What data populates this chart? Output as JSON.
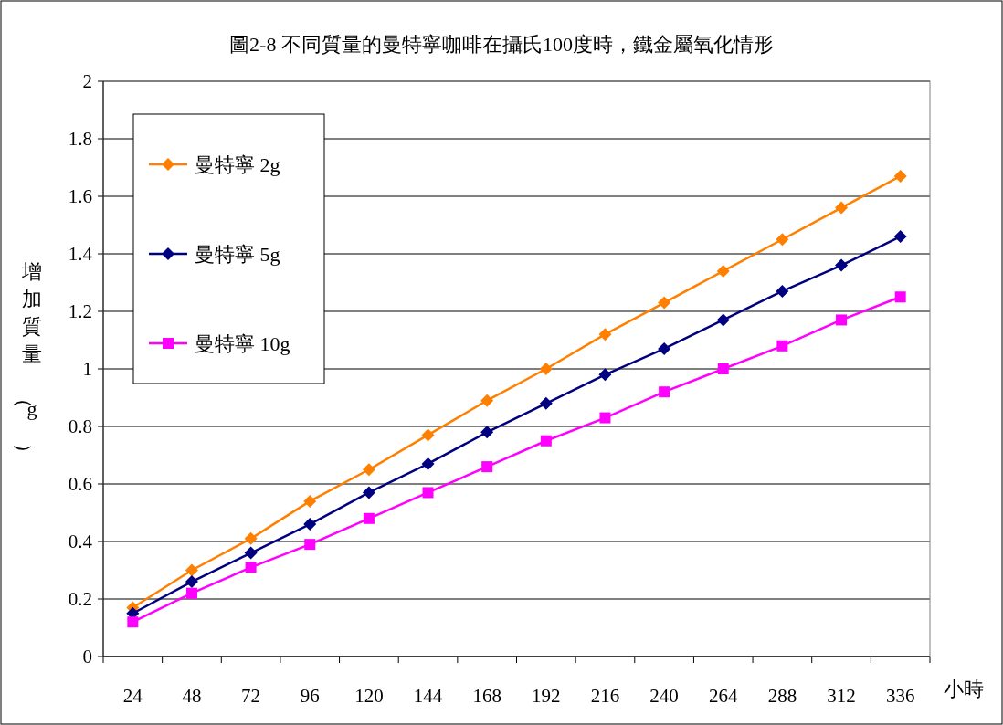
{
  "chart_data": {
    "type": "line",
    "title": "圖2-8 不同質量的曼特寧咖啡在攝氏100度時，鐵金屬氧化情形",
    "xlabel": "小時",
    "ylabel": "增加質量（g）",
    "categories": [
      "24",
      "48",
      "72",
      "96",
      "120",
      "144",
      "168",
      "192",
      "216",
      "240",
      "264",
      "288",
      "312",
      "336"
    ],
    "ylim": [
      0,
      2
    ],
    "yticks": [
      0,
      0.2,
      0.4,
      0.6,
      0.8,
      1,
      1.2,
      1.4,
      1.6,
      1.8,
      2
    ],
    "grid": "y",
    "legend": "top left",
    "line_style": "solid",
    "series": [
      {
        "name": "曼特寧 2g",
        "color": "#ff8000",
        "marker": "diamond",
        "values": [
          0.17,
          0.3,
          0.41,
          0.54,
          0.65,
          0.77,
          0.89,
          1.0,
          1.12,
          1.23,
          1.34,
          1.45,
          1.56,
          1.67
        ]
      },
      {
        "name": "曼特寧 5g",
        "color": "#000080",
        "marker": "diamond",
        "values": [
          0.15,
          0.26,
          0.36,
          0.46,
          0.57,
          0.67,
          0.78,
          0.88,
          0.98,
          1.07,
          1.17,
          1.27,
          1.36,
          1.46
        ]
      },
      {
        "name": "曼特寧 10g",
        "color": "#ff00ff",
        "marker": "square",
        "values": [
          0.12,
          0.22,
          0.31,
          0.39,
          0.48,
          0.57,
          0.66,
          0.75,
          0.83,
          0.92,
          1.0,
          1.08,
          1.17,
          1.25
        ]
      }
    ]
  }
}
